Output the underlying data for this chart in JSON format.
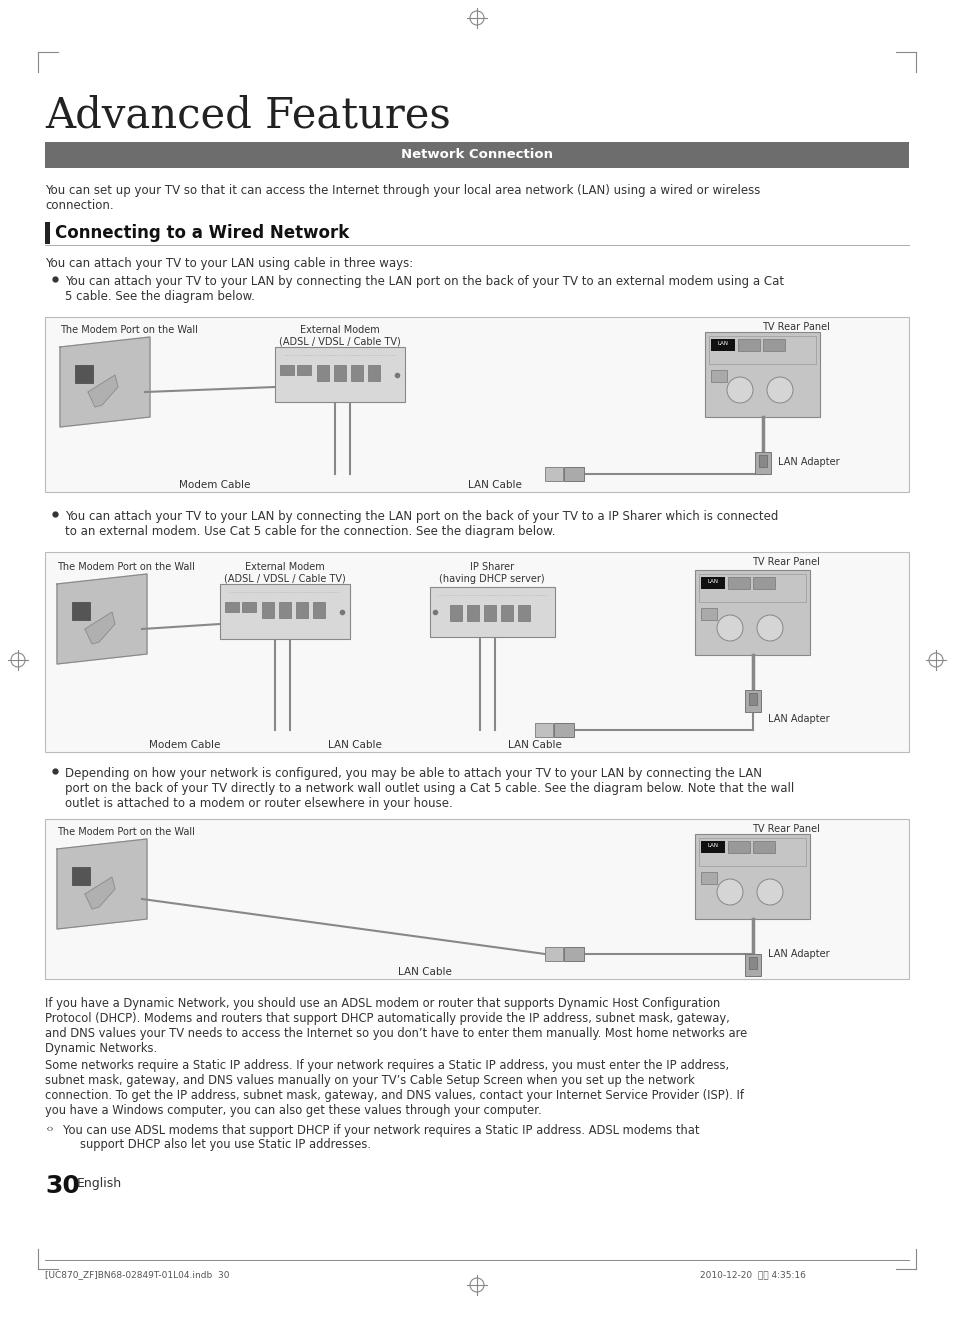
{
  "page_bg": "#ffffff",
  "page_title": "Advanced Features",
  "section_header_bg": "#6d6d6d",
  "section_header_text": "Network Connection",
  "section_header_color": "#ffffff",
  "section2_title": "Connecting to a Wired Network",
  "intro_text": "You can set up your TV so that it can access the Internet through your local area network (LAN) using a wired or wireless\nconnection.",
  "section2_intro": "You can attach your TV to your LAN using cable in three ways:",
  "bullet1_text": "You can attach your TV to your LAN by connecting the LAN port on the back of your TV to an external modem using a Cat\n5 cable. See the diagram below.",
  "bullet2_text": "You can attach your TV to your LAN by connecting the LAN port on the back of your TV to a IP Sharer which is connected\nto an external modem. Use Cat 5 cable for the connection. See the diagram below.",
  "bullet3_text": "Depending on how your network is configured, you may be able to attach your TV to your LAN by connecting the LAN\nport on the back of your TV directly to a network wall outlet using a Cat 5 cable. See the diagram below. Note that the wall\noutlet is attached to a modem or router elsewhere in your house.",
  "footer_text1": "If you have a Dynamic Network, you should use an ADSL modem or router that supports Dynamic Host Configuration\nProtocol (DHCP). Modems and routers that support DHCP automatically provide the IP address, subnet mask, gateway,\nand DNS values your TV needs to access the Internet so you don’t have to enter them manually. Most home networks are\nDynamic Networks.",
  "footer_text2": "Some networks require a Static IP address. If your network requires a Static IP address, you must enter the IP address,\nsubnet mask, gateway, and DNS values manually on your TV’s Cable Setup Screen when you set up the network\nconnection. To get the IP address, subnet mask, gateway, and DNS values, contact your Internet Service Provider (ISP). If\nyou have a Windows computer, you can also get these values through your computer.",
  "footer_note1": "You can use ADSL modems that support DHCP if your network requires a Static IP address. ADSL modems that",
  "footer_note2": "support DHCP also let you use Static IP addresses.",
  "page_number": "30",
  "page_lang": "English",
  "bottom_text": "[UC870_ZF]BN68-02849T-01L04.indb  30",
  "bottom_date": "2010-12-20  오후 4:35:16"
}
